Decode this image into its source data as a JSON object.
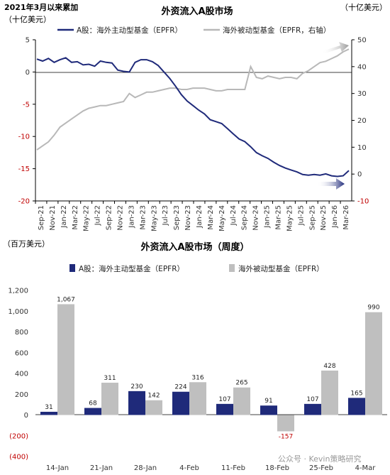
{
  "chart_data": [
    {
      "type": "line",
      "note": "2021年3月以来累加",
      "title": "外资流入A股市场",
      "ylabel_left": "（十亿美元）",
      "ylabel_right": "（十亿美元）",
      "ylim_left": [
        -20,
        5
      ],
      "ylim_right": [
        -10,
        50
      ],
      "yticks_left": [
        "5",
        "0",
        "-5",
        "-10",
        "-15",
        "-20"
      ],
      "yticks_right": [
        "50",
        "40",
        "30",
        "20",
        "10",
        "0",
        "-10"
      ],
      "x_ticks": [
        "Sep-21",
        "Nov-21",
        "Jan-22",
        "Mar-22",
        "May-22",
        "Jul-22",
        "Sep-22",
        "Nov-22",
        "Jan-23",
        "Mar-23",
        "May-23",
        "Jul-23",
        "Sep-23",
        "Nov-23",
        "Jan-24",
        "Mar-24",
        "May-24",
        "Jul-24",
        "Sep-24",
        "Nov-24",
        "Jan-25",
        "Mar-25",
        "May-25",
        "Jul-25",
        "Sep-25",
        "Nov-25",
        "Jan-26",
        "Mar-26"
      ],
      "series": [
        {
          "name": "A股：海外主动型基金（EPFR）",
          "axis": "left",
          "color": "#1f2a7a",
          "x": [
            "Sep-21",
            "Oct-21",
            "Nov-21",
            "Dec-21",
            "Jan-22",
            "Feb-22",
            "Mar-22",
            "Apr-22",
            "May-22",
            "Jun-22",
            "Jul-22",
            "Aug-22",
            "Sep-22",
            "Oct-22",
            "Nov-22",
            "Dec-22",
            "Jan-23",
            "Feb-23",
            "Mar-23",
            "Apr-23",
            "May-23",
            "Jun-23",
            "Jul-23",
            "Aug-23",
            "Sep-23",
            "Oct-23",
            "Nov-23",
            "Dec-23",
            "Jan-24",
            "Feb-24",
            "Mar-24",
            "Apr-24",
            "May-24",
            "Jun-24",
            "Jul-24",
            "Aug-24",
            "Sep-24",
            "Oct-24",
            "Nov-24",
            "Dec-24",
            "Jan-25",
            "Feb-25",
            "Mar-25",
            "Apr-25",
            "May-25",
            "Jun-25",
            "Jul-25",
            "Aug-25",
            "Sep-25",
            "Oct-25",
            "Nov-25",
            "Dec-25",
            "Jan-26",
            "Feb-26",
            "Mar-26"
          ],
          "values": [
            2.0,
            1.7,
            2.1,
            1.5,
            1.9,
            2.2,
            1.5,
            1.6,
            1.1,
            1.2,
            0.9,
            1.7,
            1.5,
            1.4,
            0.3,
            0.1,
            0.0,
            1.5,
            1.9,
            1.9,
            1.6,
            1.0,
            0.0,
            -1.0,
            -2.2,
            -3.5,
            -4.5,
            -5.2,
            -5.9,
            -6.5,
            -7.4,
            -7.7,
            -8.0,
            -8.8,
            -9.6,
            -10.4,
            -10.8,
            -11.6,
            -12.5,
            -13.0,
            -13.4,
            -14.0,
            -14.5,
            -14.9,
            -15.2,
            -15.5,
            -15.9,
            -16.0,
            -15.9,
            -16.0,
            -15.8,
            -16.1,
            -16.2,
            -16.1,
            -15.3
          ]
        },
        {
          "name": "海外被动型基金（EPFR，右轴）",
          "axis": "right",
          "color": "#b8b8b8",
          "x": [
            "Sep-21",
            "Oct-21",
            "Nov-21",
            "Dec-21",
            "Jan-22",
            "Feb-22",
            "Mar-22",
            "Apr-22",
            "May-22",
            "Jun-22",
            "Jul-22",
            "Aug-22",
            "Sep-22",
            "Oct-22",
            "Nov-22",
            "Dec-22",
            "Jan-23",
            "Feb-23",
            "Mar-23",
            "Apr-23",
            "May-23",
            "Jun-23",
            "Jul-23",
            "Aug-23",
            "Sep-23",
            "Oct-23",
            "Nov-23",
            "Dec-23",
            "Jan-24",
            "Feb-24",
            "Mar-24",
            "Apr-24",
            "May-24",
            "Jun-24",
            "Jul-24",
            "Aug-24",
            "Sep-24",
            "Oct-24",
            "Nov-24",
            "Dec-24",
            "Jan-25",
            "Feb-25",
            "Mar-25",
            "Apr-25",
            "May-25",
            "Jun-25",
            "Jul-25",
            "Aug-25",
            "Sep-25",
            "Oct-25",
            "Nov-25",
            "Dec-25",
            "Jan-26",
            "Feb-26",
            "Mar-26"
          ],
          "values": [
            9.0,
            10.5,
            12.0,
            14.5,
            17.5,
            19.0,
            20.5,
            22.0,
            23.5,
            24.5,
            25.0,
            25.5,
            25.5,
            26.0,
            26.5,
            27.0,
            30.0,
            28.5,
            29.5,
            30.5,
            30.5,
            31.0,
            31.5,
            32.0,
            32.0,
            31.5,
            31.5,
            32.0,
            32.0,
            32.0,
            31.5,
            31.0,
            31.0,
            31.5,
            31.5,
            31.5,
            31.5,
            40.0,
            36.0,
            35.5,
            36.5,
            36.0,
            35.5,
            36.0,
            36.0,
            35.5,
            37.5,
            38.5,
            40.0,
            41.5,
            42.0,
            43.0,
            44.0,
            45.5,
            46.5
          ]
        }
      ]
    },
    {
      "type": "bar",
      "title": "外资流入A股市场（周度）",
      "ylabel": "（百万美元）",
      "ylim": [
        -400,
        1200
      ],
      "yticks": [
        "1,200",
        "1,000",
        "800",
        "600",
        "400",
        "200",
        "0",
        "(200)",
        "(400)"
      ],
      "categories": [
        "14-Jan",
        "21-Jan",
        "28-Jan",
        "4-Feb",
        "11-Feb",
        "18-Feb",
        "25-Feb",
        "4-Mar"
      ],
      "series": [
        {
          "name": "A股：海外主动型基金（EPFR）",
          "color": "#1f2a7a",
          "values": [
            31,
            68,
            230,
            224,
            107,
            91,
            107,
            165
          ]
        },
        {
          "name": "海外被动型基金（EPFR）",
          "color": "#bfbfbf",
          "values": [
            1067,
            311,
            142,
            316,
            265,
            -157,
            428,
            990
          ]
        }
      ],
      "value_labels": {
        "series0": [
          "31",
          "68",
          "230",
          "224",
          "107",
          "91",
          "107",
          "165"
        ],
        "series1": [
          "1,067",
          "311",
          "142",
          "316",
          "265",
          "-157",
          "428",
          "990"
        ]
      }
    }
  ],
  "watermark": "公众号 · Kevin策略研究"
}
